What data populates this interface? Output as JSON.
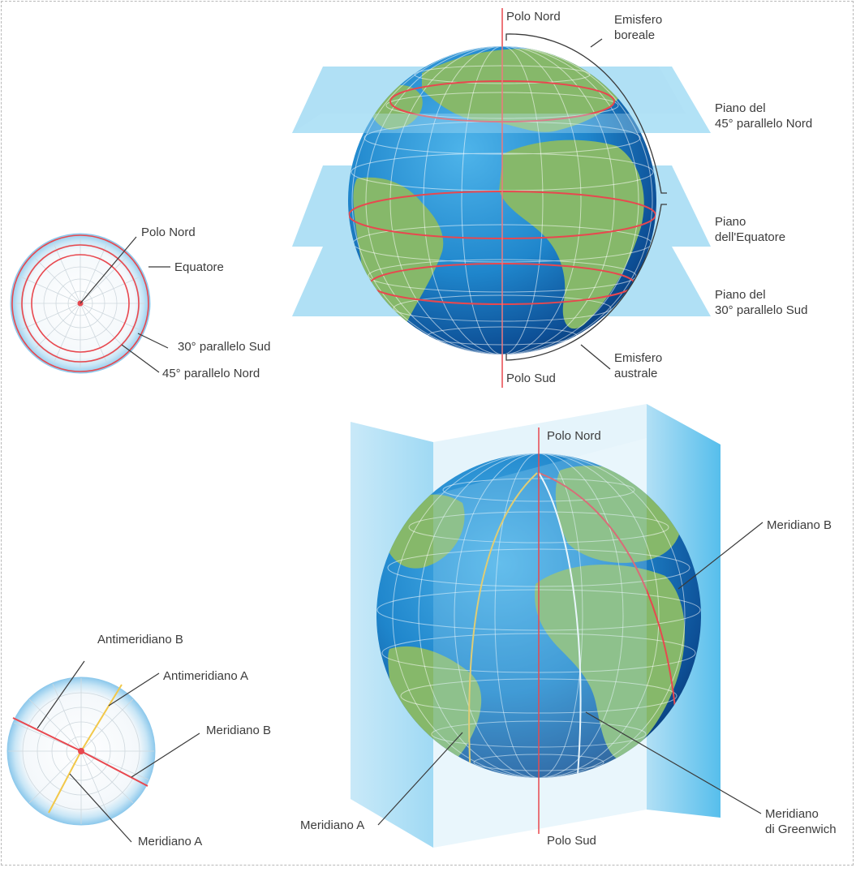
{
  "top_globe": {
    "north_pole": "Polo Nord",
    "south_pole": "Polo Sud",
    "north_hemisphere": [
      "Emisfero",
      "boreale"
    ],
    "south_hemisphere": [
      "Emisfero",
      "australe"
    ],
    "plane_45n": [
      "Piano del",
      "45° parallelo Nord"
    ],
    "plane_equator": [
      "Piano",
      "dell'Equatore"
    ],
    "plane_30s": [
      "Piano del",
      "30° parallelo Sud"
    ]
  },
  "top_disc": {
    "north_pole": "Polo Nord",
    "equator": "Equatore",
    "parallel_30s": "30° parallelo Sud",
    "parallel_45n": "45° parallelo Nord"
  },
  "bottom_globe": {
    "north_pole": "Polo Nord",
    "south_pole": "Polo Sud",
    "meridian_b": "Meridiano B",
    "meridian_a": "Meridiano A",
    "greenwich": [
      "Meridiano",
      "di Greenwich"
    ]
  },
  "bottom_disc": {
    "antimeridian_b": "Antimeridiano B",
    "antimeridian_a": "Antimeridiano A",
    "meridian_b": "Meridiano B",
    "meridian_a": "Meridiano A"
  },
  "colors": {
    "ocean": "#1f7fc6",
    "land": "#86b86a",
    "plane": "#8fd0ef",
    "parallel_line": "#e8484f",
    "antimeridian_line": "#f2c84a",
    "leader_line": "#3a3a3a"
  }
}
